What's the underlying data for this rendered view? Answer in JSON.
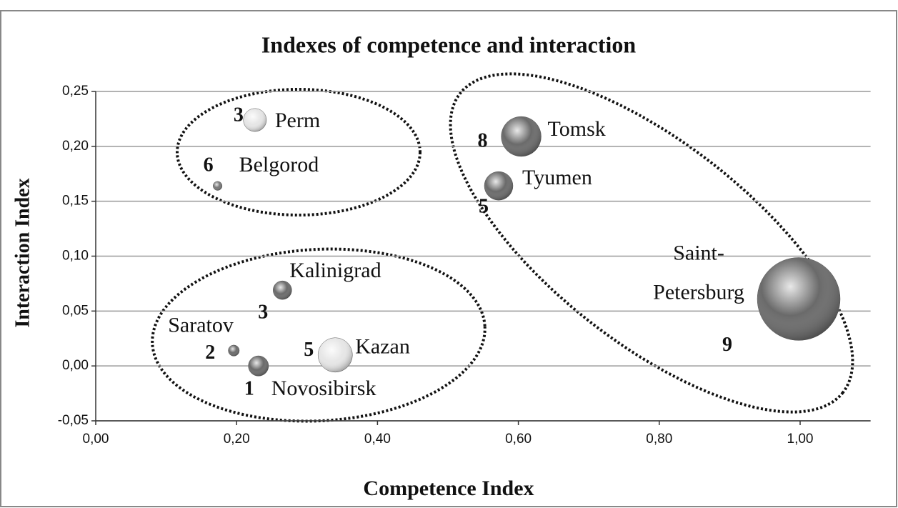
{
  "chart_data": {
    "type": "bubble",
    "title": "Indexes of competence and interaction",
    "x_label": "Competence Index",
    "y_label": "Interaction Index",
    "names": [
      "Perm",
      "Belgorod",
      "Tomsk",
      "Tyumen",
      "Saint-Petersburg",
      "Kalinigrad",
      "Saratov",
      "Novosibirsk",
      "Kazan"
    ],
    "point_labels": [
      3,
      6,
      8,
      5,
      9,
      3,
      2,
      1,
      5
    ],
    "x": [
      0.226,
      0.173,
      0.604,
      0.572,
      0.998,
      0.265,
      0.196,
      0.231,
      0.34
    ],
    "values": [
      0.224,
      0.164,
      0.209,
      0.164,
      0.061,
      0.069,
      0.014,
      0.0,
      0.01
    ],
    "sizes": [
      2.6,
      0.4,
      7.8,
      4.0,
      33.6,
      1.7,
      0.6,
      2.0,
      5.8
    ],
    "colors": [
      "#e6e6e6",
      "#777777",
      "#6a6a6a",
      "#6a6a6a",
      "#6a6a6a",
      "#6a6a6a",
      "#6a6a6a",
      "#6a6a6a",
      "#e6e6e6"
    ],
    "xlim": [
      0,
      1.1
    ],
    "ylim": [
      -0.05,
      0.25
    ],
    "xticks": [
      {
        "value": 0,
        "label": "0,00"
      },
      {
        "value": 0.2,
        "label": "0,20"
      },
      {
        "value": 0.4,
        "label": "0,40"
      },
      {
        "value": 0.6,
        "label": "0,60"
      },
      {
        "value": 0.8,
        "label": "0,80"
      },
      {
        "value": 1.0,
        "label": "1,00"
      }
    ],
    "yticks": [
      {
        "value": -0.05,
        "label": "-0,05"
      },
      {
        "value": 0,
        "label": "0,00"
      },
      {
        "value": 0.05,
        "label": "0,05"
      },
      {
        "value": 0.1,
        "label": "0,10"
      },
      {
        "value": 0.15,
        "label": "0,15"
      },
      {
        "value": 0.2,
        "label": "0,20"
      },
      {
        "value": 0.25,
        "label": "0,25"
      }
    ],
    "grid": true
  }
}
